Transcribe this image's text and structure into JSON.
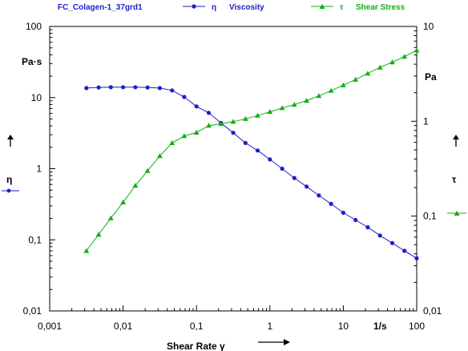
{
  "legend": {
    "sample": "FC_Colagen-1_37grd1",
    "viscosity_symbol": "η",
    "viscosity_label": "Viscosity",
    "stress_symbol": "τ",
    "stress_label": "Shear Stress"
  },
  "colors": {
    "viscosity": "#1e1ec8",
    "stress": "#10b010",
    "axis": "#000000"
  },
  "chart_data": {
    "type": "line",
    "title": "FC_Colagen-1_37grd1",
    "xlabel": "Shear Rate γ",
    "xunit": "1/s",
    "xscale": "log",
    "xlim": [
      0.001,
      100
    ],
    "x_ticks": [
      "0,001",
      "0,01",
      "0,1",
      "1",
      "10",
      "100"
    ],
    "y_left": {
      "unit": "Pa·s",
      "symbol": "η",
      "scale": "log",
      "lim": [
        0.01,
        100
      ],
      "ticks": [
        "0,01",
        "0,1",
        "1",
        "10",
        "100"
      ]
    },
    "y_right": {
      "unit": "Pa",
      "symbol": "τ",
      "scale": "log",
      "lim": [
        0.01,
        10
      ],
      "ticks": [
        "0,01",
        "0,1",
        "1",
        "10"
      ]
    },
    "grid": false,
    "legend_position": "top",
    "series": [
      {
        "name": "Viscosity",
        "axis": "left",
        "marker": "circle",
        "x": [
          0.00316,
          0.00464,
          0.00681,
          0.01,
          0.0147,
          0.0215,
          0.0316,
          0.0464,
          0.0681,
          0.1,
          0.147,
          0.215,
          0.316,
          0.464,
          0.681,
          1,
          1.47,
          2.15,
          3.16,
          4.64,
          6.81,
          10,
          14.7,
          21.5,
          31.6,
          46.4,
          68.1,
          100
        ],
        "y": [
          13.6,
          13.9,
          14.0,
          14.0,
          14.0,
          13.9,
          13.6,
          12.6,
          10.2,
          7.5,
          6.1,
          4.4,
          3.2,
          2.3,
          1.8,
          1.35,
          1.0,
          0.74,
          0.56,
          0.42,
          0.32,
          0.24,
          0.19,
          0.15,
          0.115,
          0.09,
          0.07,
          0.055
        ]
      },
      {
        "name": "Shear Stress",
        "axis": "right",
        "marker": "triangle",
        "x": [
          0.00316,
          0.00464,
          0.00681,
          0.01,
          0.0147,
          0.0215,
          0.0316,
          0.0464,
          0.0681,
          0.1,
          0.147,
          0.215,
          0.316,
          0.464,
          0.681,
          1,
          1.47,
          2.15,
          3.16,
          4.64,
          6.81,
          10,
          14.7,
          21.5,
          31.6,
          46.4,
          68.1,
          100
        ],
        "y": [
          0.043,
          0.064,
          0.095,
          0.14,
          0.21,
          0.3,
          0.43,
          0.59,
          0.7,
          0.76,
          0.9,
          0.94,
          0.99,
          1.06,
          1.15,
          1.26,
          1.38,
          1.5,
          1.65,
          1.85,
          2.1,
          2.4,
          2.75,
          3.2,
          3.7,
          4.2,
          4.8,
          5.6
        ]
      }
    ]
  }
}
